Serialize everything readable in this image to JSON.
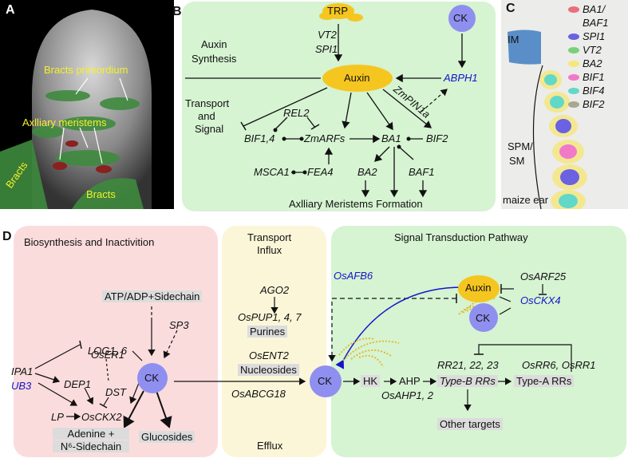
{
  "panelA": {
    "letter": "A",
    "labels": {
      "bracts_primordium": "Bracts primordium",
      "axillary": "Axlliary meristems",
      "bracts_left": "Bracts",
      "bracts_bottom": "Bracts"
    }
  },
  "panelB": {
    "letter": "B",
    "trp": "TRP",
    "ck": "CK",
    "vt2": "VT2",
    "spi1": "SPI1",
    "auxin_synth": "Auxin",
    "auxin_synth2": "Synthesis",
    "auxin": "Auxin",
    "abph1": "ABPH1",
    "zmpin": "ZmPIN1a",
    "transport": "Transport",
    "and": "and",
    "signal": "Signal",
    "rel2": "REL2",
    "bif14": "BIF1,4",
    "zmarfs": "ZmARFs",
    "ba1": "BA1",
    "bif2": "BIF2",
    "msca1": "MSCA1",
    "fea4": "FEA4",
    "ba2": "BA2",
    "baf1": "BAF1",
    "formation": "Axlliary Meristems Formation"
  },
  "panelC": {
    "letter": "C",
    "im": "IM",
    "spm": "SPM/",
    "sm": "SM",
    "ear": "maize ear",
    "legend": [
      {
        "name": "BA1/",
        "name2": "BAF1",
        "color": "#e8707a"
      },
      {
        "name": "SPI1",
        "name2": "",
        "color": "#6a62e0"
      },
      {
        "name": "VT2",
        "name2": "",
        "color": "#7ad07a"
      },
      {
        "name": "BA2",
        "name2": "",
        "color": "#f5e77a"
      },
      {
        "name": "BIF1",
        "name2": "",
        "color": "#f07ac8"
      },
      {
        "name": "BIF4",
        "name2": "",
        "color": "#62d8c8"
      },
      {
        "name": "BIF2",
        "name2": "",
        "color": "#a8a890"
      }
    ]
  },
  "panelD": {
    "letter": "D",
    "bio_title": "Biosynthesis and Inactivition",
    "atp": "ATP/ADP+Sidechain",
    "sp3": "SP3",
    "log": "LOG1, 6",
    "ipa1": "IPA1",
    "ub3": "UB3",
    "oser1": "OsER1",
    "dep1": "DEP1",
    "dst": "DST",
    "ck": "CK",
    "lp": "LP",
    "oscxk2": "OsCKX2",
    "adenine1": "Adenine +",
    "adenine2": "N⁶-Sidechain",
    "glucosides": "Glucosides",
    "transport_title1": "Transport",
    "transport_title2": "Influx",
    "ago2": "AGO2",
    "ospup": "OsPUP1, 4, 7",
    "purines": "Purines",
    "osent2": "OsENT2",
    "nucleosides": "Nucleosides",
    "osabcg18": "OsABCG18",
    "efflux": "Efflux",
    "signal_title": "Signal Transduction Pathway",
    "osafb6": "OsAFB6",
    "auxin": "Auxin",
    "osarf25": "OsARF25",
    "osckx4": "OsCKX4",
    "ck2": "CK",
    "ck3": "CK",
    "hk": "HK",
    "ahp": "AHP",
    "osahp": "OsAHP1, 2",
    "rr": "RR21, 22, 23",
    "typeb": "Type-B RRs",
    "osrr": "OsRR6, OsRR1",
    "typea": "Type-A RRs",
    "other": "Other targets"
  }
}
